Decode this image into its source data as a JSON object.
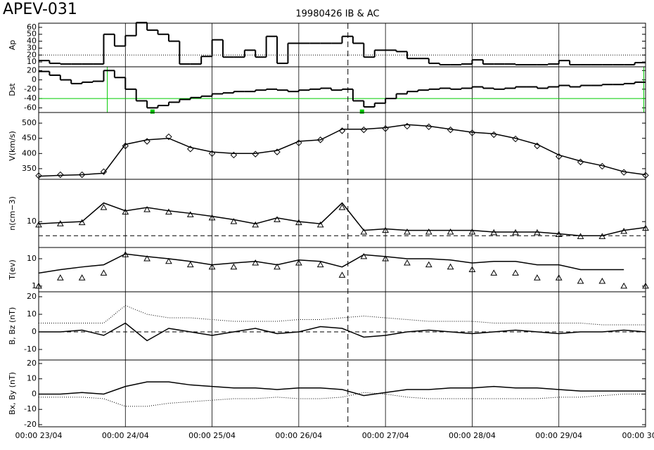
{
  "title": "APEV-031",
  "subtitle": "19980426 IB & AC",
  "event_x": 85.6,
  "chart_data": [
    {
      "type": "step",
      "ylabel": "Ap",
      "xlim": [
        0,
        168
      ],
      "ylim": [
        3,
        66
      ],
      "yticks": [
        10,
        20,
        30,
        40,
        50,
        60
      ],
      "log": false,
      "ref_line": 20,
      "ref_style": "dotted",
      "ref_color": "#000000",
      "x": [
        0,
        3,
        6,
        9,
        12,
        15,
        18,
        21,
        24,
        27,
        30,
        33,
        36,
        39,
        42,
        45,
        48,
        51,
        54,
        57,
        60,
        63,
        66,
        69,
        72,
        75,
        78,
        81,
        84,
        87,
        90,
        93,
        96,
        99,
        102,
        105,
        108,
        111,
        114,
        117,
        120,
        123,
        126,
        129,
        132,
        135,
        138,
        141,
        144,
        147,
        150,
        153,
        156,
        159,
        162,
        165
      ],
      "series": [
        {
          "color": "#000000",
          "style": "solid",
          "values": [
            12,
            8,
            7,
            7,
            7,
            7,
            50,
            33,
            48,
            67,
            56,
            50,
            40,
            7,
            7,
            18,
            42,
            17,
            17,
            27,
            17,
            47,
            8,
            37,
            37,
            37,
            37,
            37,
            47,
            37,
            17,
            27,
            27,
            25,
            15,
            15,
            8,
            6,
            6,
            7,
            13,
            7,
            7,
            7,
            6,
            6,
            6,
            7,
            12,
            6,
            6,
            6,
            6,
            6,
            6,
            9
          ]
        }
      ]
    },
    {
      "type": "step",
      "ylabel": "Dst",
      "xlim": [
        0,
        168
      ],
      "ylim": [
        -70,
        28
      ],
      "yticks": [
        -60,
        -40,
        -20,
        0,
        20
      ],
      "log": false,
      "ref_line": -40,
      "ref_style": "solid",
      "ref_color": "#00cc00",
      "vlines": [
        19,
        167.5
      ],
      "points_x": [
        31.5,
        89.5
      ],
      "points_y": [
        -68,
        -68
      ],
      "x": [
        0,
        3,
        6,
        9,
        12,
        15,
        18,
        21,
        24,
        27,
        30,
        33,
        36,
        39,
        42,
        45,
        48,
        51,
        54,
        57,
        60,
        63,
        66,
        69,
        72,
        75,
        78,
        81,
        84,
        87,
        90,
        93,
        96,
        99,
        102,
        105,
        108,
        111,
        114,
        117,
        120,
        123,
        126,
        129,
        132,
        135,
        138,
        141,
        144,
        147,
        150,
        153,
        156,
        159,
        162,
        165
      ],
      "series": [
        {
          "color": "#000000",
          "style": "solid",
          "values": [
            18,
            10,
            0,
            -8,
            -5,
            -3,
            20,
            5,
            -20,
            -45,
            -60,
            -55,
            -48,
            -42,
            -38,
            -35,
            -30,
            -28,
            -25,
            -25,
            -22,
            -20,
            -22,
            -25,
            -22,
            -20,
            -18,
            -22,
            -20,
            -45,
            -58,
            -50,
            -40,
            -30,
            -25,
            -22,
            -20,
            -18,
            -20,
            -18,
            -15,
            -18,
            -20,
            -18,
            -15,
            -15,
            -18,
            -15,
            -12,
            -15,
            -12,
            -12,
            -10,
            -10,
            -8,
            -5
          ]
        }
      ]
    },
    {
      "type": "line",
      "ylabel": "V(km/s)",
      "xlim": [
        0,
        168
      ],
      "ylim": [
        315,
        535
      ],
      "yticks": [
        350,
        400,
        450,
        500
      ],
      "log": false,
      "x": [
        0,
        6,
        12,
        18,
        24,
        30,
        36,
        42,
        48,
        54,
        60,
        66,
        72,
        78,
        84,
        90,
        96,
        102,
        108,
        114,
        120,
        126,
        132,
        138,
        144,
        150,
        156,
        162,
        168
      ],
      "series": [
        {
          "color": "#000000",
          "style": "solid",
          "values": [
            325,
            328,
            330,
            335,
            430,
            445,
            450,
            420,
            405,
            400,
            400,
            410,
            440,
            445,
            480,
            480,
            485,
            495,
            490,
            480,
            470,
            465,
            450,
            430,
            395,
            375,
            360,
            340,
            330
          ]
        },
        {
          "color": "#000000",
          "style": "solid",
          "marker": "diamond",
          "values": [
            327,
            330,
            330,
            340,
            425,
            440,
            455,
            415,
            400,
            395,
            398,
            405,
            435,
            445,
            475,
            478,
            482,
            490,
            488,
            478,
            468,
            462,
            448,
            425,
            390,
            372,
            358,
            338,
            328
          ]
        }
      ]
    },
    {
      "type": "line",
      "ylabel": "n(cm−3)",
      "xlim": [
        0,
        168
      ],
      "ylim": [
        2.8,
        80
      ],
      "yticks": [
        10
      ],
      "log": true,
      "ref_line": 5,
      "ref_style": "dashed",
      "ref_color": "#000000",
      "x": [
        0,
        6,
        12,
        18,
        24,
        30,
        36,
        42,
        48,
        54,
        60,
        66,
        72,
        78,
        84,
        90,
        96,
        102,
        108,
        114,
        120,
        126,
        132,
        138,
        144,
        150,
        156,
        162,
        168
      ],
      "series": [
        {
          "color": "#000000",
          "style": "solid",
          "values": [
            9,
            9.5,
            10,
            25,
            17,
            20,
            17,
            15,
            13,
            11,
            9,
            12,
            10,
            9,
            25,
            6.5,
            7,
            6.5,
            6.5,
            6.5,
            6.5,
            6,
            6,
            6,
            5.5,
            5,
            5,
            6.5,
            7.5
          ]
        },
        {
          "color": "#000000",
          "style": "solid",
          "marker": "triangle",
          "values": [
            8.5,
            9,
            9.5,
            20,
            16,
            18,
            16,
            14,
            12,
            10,
            8.5,
            11,
            9.5,
            8.5,
            20,
            6,
            6.5,
            6,
            6,
            6,
            6,
            5.8,
            5.8,
            5.8,
            5.3,
            4.8,
            4.8,
            6.2,
            7.2
          ]
        }
      ]
    },
    {
      "type": "line",
      "ylabel": "T(ev)",
      "xlim": [
        0,
        168
      ],
      "ylim": [
        0.62,
        25.7
      ],
      "yticks": [
        1,
        10
      ],
      "log": true,
      "x": [
        0,
        6,
        12,
        18,
        24,
        30,
        36,
        42,
        48,
        54,
        60,
        66,
        72,
        78,
        84,
        90,
        96,
        102,
        108,
        114,
        120,
        126,
        132,
        138,
        144,
        150,
        156,
        162,
        168
      ],
      "series": [
        {
          "color": "#000000",
          "style": "solid",
          "values": [
            3,
            4,
            5,
            6,
            15,
            12,
            10,
            8,
            6,
            7,
            8,
            6,
            9,
            8,
            5,
            14,
            12,
            10,
            10,
            9,
            7,
            8,
            8,
            6,
            6,
            4,
            4,
            4,
            null
          ]
        },
        {
          "color": "#000000",
          "style": "solid",
          "marker": "triangle",
          "values": [
            1,
            2,
            2,
            3,
            14,
            10,
            8,
            6,
            5,
            5,
            7,
            5,
            7,
            6,
            2.5,
            12,
            10,
            7,
            6,
            5,
            4,
            3,
            3,
            2,
            2,
            1.5,
            1.5,
            1,
            1
          ]
        }
      ]
    },
    {
      "type": "line",
      "ylabel": "B, Bz (nT)",
      "xlim": [
        0,
        168
      ],
      "ylim": [
        -16,
        22.8
      ],
      "yticks": [
        -10,
        0,
        10,
        20
      ],
      "log": false,
      "ref_line": 0,
      "ref_style": "dashed",
      "ref_color": "#000000",
      "x": [
        0,
        6,
        12,
        18,
        24,
        30,
        36,
        42,
        48,
        54,
        60,
        66,
        72,
        78,
        84,
        90,
        96,
        102,
        108,
        114,
        120,
        126,
        132,
        138,
        144,
        150,
        156,
        162,
        168
      ],
      "series": [
        {
          "color": "#000000",
          "style": "dotted",
          "values": [
            5,
            5,
            5,
            5,
            15,
            10,
            8,
            8,
            7,
            6,
            6,
            6,
            7,
            7,
            8,
            9,
            8,
            7,
            6,
            6,
            6,
            5,
            5,
            5,
            5,
            5,
            4,
            4,
            4
          ]
        },
        {
          "color": "#000000",
          "style": "solid",
          "values": [
            0,
            0,
            1,
            -2,
            5,
            -5,
            2,
            0,
            -2,
            0,
            2,
            -1,
            0,
            3,
            2,
            -3,
            -2,
            0,
            1,
            0,
            -1,
            0,
            1,
            0,
            -1,
            0,
            0,
            1,
            0
          ]
        }
      ]
    },
    {
      "type": "line",
      "ylabel": "Bx, By (nT)",
      "xlim": [
        0,
        168
      ],
      "ylim": [
        -21.4,
        22.3
      ],
      "yticks": [
        -20,
        -10,
        0,
        10,
        20
      ],
      "log": false,
      "xticks": [
        {
          "value": 0,
          "label": "00:00 23/04"
        },
        {
          "value": 24,
          "label": "00:00 24/04"
        },
        {
          "value": 48,
          "label": "00:00 25/04"
        },
        {
          "value": 72,
          "label": "00:00 26/04"
        },
        {
          "value": 96,
          "label": "00:00 27/04"
        },
        {
          "value": 120,
          "label": "00:00 28/04"
        },
        {
          "value": 144,
          "label": "00:00 29/04"
        },
        {
          "value": 168,
          "label": "00:00 30/04"
        }
      ],
      "x": [
        0,
        6,
        12,
        18,
        24,
        30,
        36,
        42,
        48,
        54,
        60,
        66,
        72,
        78,
        84,
        90,
        96,
        102,
        108,
        114,
        120,
        126,
        132,
        138,
        144,
        150,
        156,
        162,
        168
      ],
      "series": [
        {
          "color": "#000000",
          "style": "solid",
          "values": [
            0,
            0,
            1,
            0,
            5,
            8,
            8,
            6,
            5,
            4,
            4,
            3,
            4,
            4,
            3,
            -1,
            1,
            3,
            3,
            4,
            4,
            5,
            4,
            4,
            3,
            2,
            2,
            2,
            2
          ]
        },
        {
          "color": "#000000",
          "style": "dotted",
          "values": [
            -2,
            -2,
            -2,
            -3,
            -8,
            -8,
            -6,
            -5,
            -4,
            -3,
            -3,
            -2,
            -3,
            -3,
            -2,
            1,
            0,
            -2,
            -3,
            -3,
            -3,
            -3,
            -3,
            -3,
            -2,
            -2,
            -1,
            0,
            0
          ]
        }
      ]
    }
  ]
}
